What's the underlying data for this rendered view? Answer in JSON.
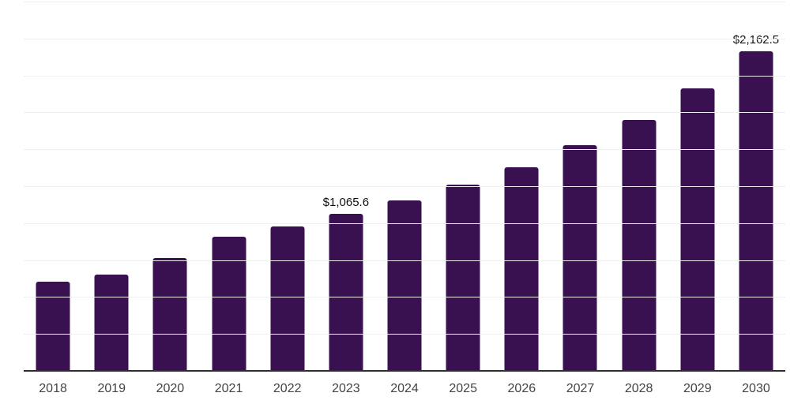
{
  "chart_data": {
    "type": "bar",
    "title": "",
    "xlabel": "",
    "ylabel": "",
    "categories": [
      "2018",
      "2019",
      "2020",
      "2021",
      "2022",
      "2023",
      "2024",
      "2025",
      "2026",
      "2027",
      "2028",
      "2029",
      "2030"
    ],
    "values": [
      601.5,
      649.4,
      766.3,
      909.8,
      978.9,
      1065.6,
      1156.2,
      1260.7,
      1379.4,
      1528.0,
      1696.6,
      1912.9,
      2162.5
    ],
    "data_labels": {
      "2023": "$1,065.6",
      "2030": "$2,162.5"
    },
    "ylim": [
      0,
      2500
    ],
    "gridline_step": 250,
    "grid": true,
    "legend": false,
    "layout": {
      "note_values_estimated_from_gridlines": true
    },
    "colors": {
      "bar": "#3A1150",
      "axis": "#2e2e2e",
      "gridline": "#f0f0f0",
      "value_label": "#111111",
      "tick_label": "#444444",
      "background": "#ffffff"
    }
  }
}
